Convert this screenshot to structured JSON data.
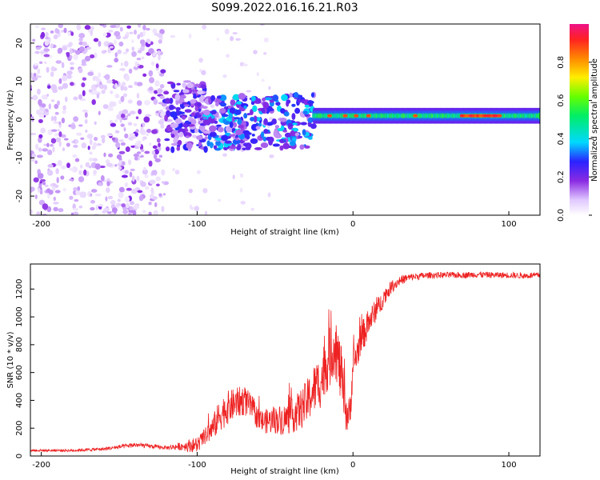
{
  "title": "S099.2022.016.16.21.R03",
  "chart_data": [
    {
      "type": "heatmap",
      "xlabel": "Height of straight line (km)",
      "ylabel": "Frequency (Hz)",
      "xlim": [
        -207,
        120
      ],
      "ylim": [
        -25,
        25
      ],
      "xticks": [
        -200,
        -100,
        0,
        100
      ],
      "yticks": [
        -20,
        -10,
        0,
        10,
        20
      ],
      "colorbar": {
        "label": "Normalized spectral amplitude",
        "range": [
          0,
          1
        ],
        "ticks": [
          0,
          0.2,
          0.4,
          0.6,
          0.8
        ],
        "tick_labels": [
          "0.0",
          "0.2",
          "0.4",
          "0.6",
          "0.8"
        ]
      },
      "regions": [
        {
          "x": [
            -207,
            -120
          ],
          "f": [
            -25,
            25
          ],
          "amplitude": 0.05,
          "description_amp": "sparse low amplitude speckle"
        },
        {
          "x": [
            -120,
            -95
          ],
          "f": [
            -8,
            10
          ],
          "amplitude": 0.2
        },
        {
          "x": [
            -95,
            -25
          ],
          "f": [
            -8,
            6
          ],
          "amplitude": 0.3
        },
        {
          "x": [
            -25,
            120
          ],
          "f": [
            -2,
            2
          ],
          "amplitude": 0.5
        },
        {
          "x": [
            70,
            95
          ],
          "f": [
            0.5,
            1.5
          ],
          "amplitude": 0.9
        }
      ]
    },
    {
      "type": "line",
      "xlabel": "Height of straight line (km)",
      "ylabel": "SNR (10 * v/v)",
      "xlim": [
        -207,
        120
      ],
      "ylim": [
        0,
        1380
      ],
      "xticks": [
        -200,
        -100,
        0,
        100
      ],
      "yticks": [
        0,
        200,
        400,
        600,
        800,
        1000,
        1200
      ],
      "series": [
        {
          "name": "SNR",
          "color": "#ee2222",
          "x": [
            -207,
            -180,
            -160,
            -140,
            -120,
            -110,
            -100,
            -95,
            -90,
            -85,
            -80,
            -75,
            -70,
            -65,
            -60,
            -55,
            -50,
            -45,
            -40,
            -35,
            -30,
            -25,
            -20,
            -18,
            -15,
            -12,
            -10,
            -8,
            -5,
            -3,
            -2,
            0,
            3,
            5,
            8,
            10,
            12,
            15,
            18,
            20,
            25,
            30,
            35,
            40,
            50,
            60,
            70,
            80,
            90,
            100,
            110,
            120
          ],
          "values": [
            40,
            40,
            50,
            80,
            60,
            70,
            80,
            140,
            200,
            300,
            350,
            380,
            400,
            350,
            250,
            250,
            260,
            260,
            280,
            320,
            380,
            480,
            550,
            650,
            700,
            800,
            720,
            600,
            350,
            280,
            300,
            650,
            750,
            850,
            900,
            950,
            1000,
            1050,
            1100,
            1150,
            1220,
            1260,
            1280,
            1290,
            1300,
            1300,
            1300,
            1305,
            1300,
            1300,
            1295,
            1300
          ],
          "noise": [
            8,
            10,
            12,
            18,
            12,
            30,
            60,
            60,
            90,
            120,
            120,
            110,
            110,
            90,
            80,
            90,
            100,
            110,
            120,
            140,
            160,
            180,
            200,
            210,
            220,
            220,
            220,
            220,
            160,
            140,
            130,
            120,
            120,
            110,
            110,
            100,
            90,
            80,
            70,
            60,
            45,
            35,
            30,
            25,
            22,
            22,
            22,
            22,
            22,
            22,
            22,
            22
          ]
        }
      ]
    }
  ]
}
